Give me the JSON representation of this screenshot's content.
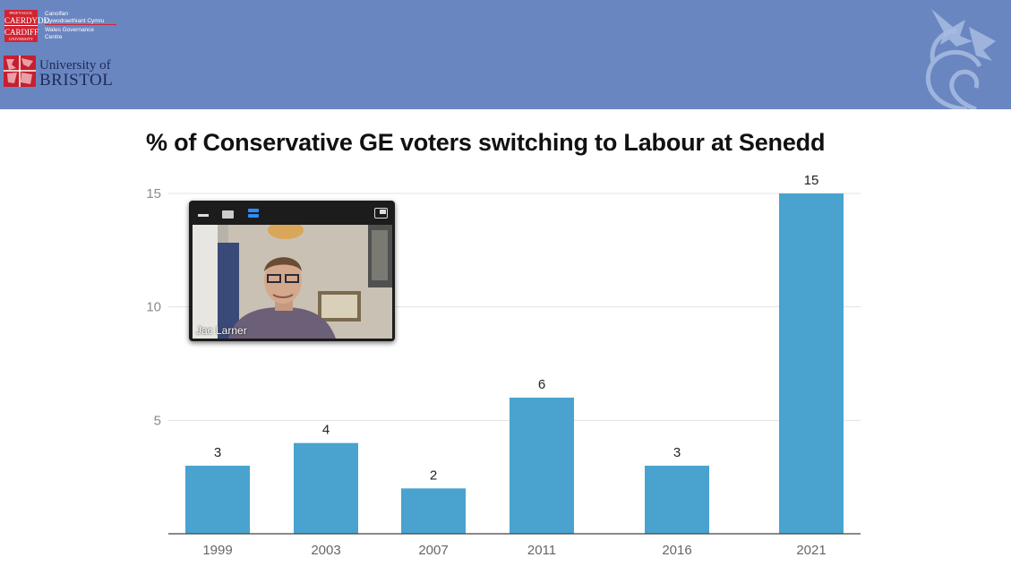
{
  "header": {
    "cardiff_logo_text": [
      "PRIFYSGOL",
      "CAERDYDD",
      "CARDIFF",
      "UNIVERSITY"
    ],
    "cardiff_centre_text": [
      "Canolfan",
      "Llywodraethiant Cymru",
      "Wales Governance",
      "Centre"
    ],
    "bristol_line1": "University of",
    "bristol_line2": "BRISTOL",
    "banner_color": "#6a86c1"
  },
  "video_tile": {
    "participant_name": "Jac Larner",
    "icons": [
      "minimize-icon",
      "stop-video-icon",
      "speaker-view-icon",
      "pop-out-icon"
    ]
  },
  "chart_data": {
    "type": "bar",
    "title": "% of Conservative GE voters switching to Labour at Senedd",
    "categories": [
      "1999",
      "2003",
      "2007",
      "2011",
      "2016",
      "2021"
    ],
    "values": [
      3,
      4,
      2,
      6,
      3,
      15
    ],
    "data_labels": [
      "3",
      "4",
      "2",
      "6",
      "3",
      "15"
    ],
    "y_ticks": [
      "5",
      "10",
      "15"
    ],
    "ylim": [
      0,
      15
    ],
    "grid": true,
    "bar_color": "#4aa3cf",
    "xlabel": "",
    "ylabel": ""
  }
}
